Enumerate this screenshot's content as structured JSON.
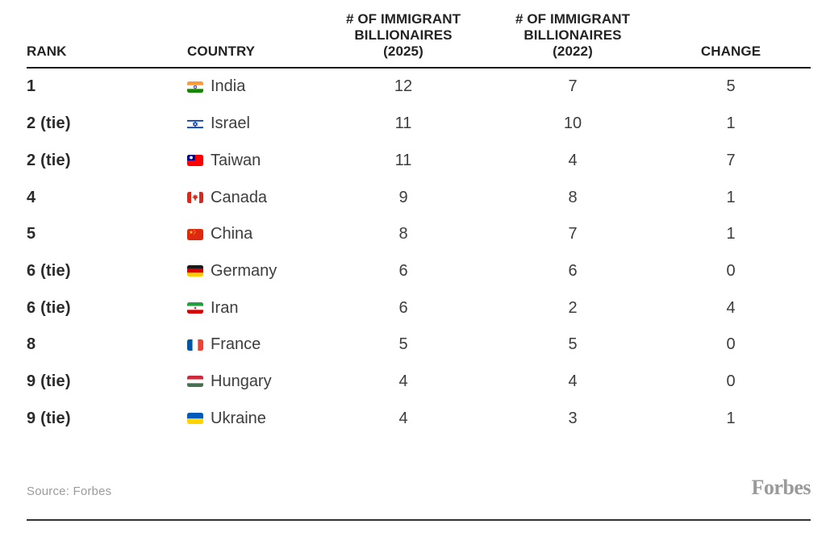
{
  "chart_data": {
    "type": "table",
    "columns": [
      "RANK",
      "COUNTRY",
      "# OF IMMIGRANT BILLIONAIRES (2025)",
      "# OF IMMIGRANT BILLIONAIRES (2022)",
      "CHANGE"
    ],
    "rows": [
      {
        "rank": "1",
        "country": "India",
        "flag": "india",
        "b2025": 12,
        "b2022": 7,
        "change": 5
      },
      {
        "rank": "2 (tie)",
        "country": "Israel",
        "flag": "israel",
        "b2025": 11,
        "b2022": 10,
        "change": 1
      },
      {
        "rank": "2 (tie)",
        "country": "Taiwan",
        "flag": "taiwan",
        "b2025": 11,
        "b2022": 4,
        "change": 7
      },
      {
        "rank": "4",
        "country": "Canada",
        "flag": "canada",
        "b2025": 9,
        "b2022": 8,
        "change": 1
      },
      {
        "rank": "5",
        "country": "China",
        "flag": "china",
        "b2025": 8,
        "b2022": 7,
        "change": 1
      },
      {
        "rank": "6 (tie)",
        "country": "Germany",
        "flag": "germany",
        "b2025": 6,
        "b2022": 6,
        "change": 0
      },
      {
        "rank": "6 (tie)",
        "country": "Iran",
        "flag": "iran",
        "b2025": 6,
        "b2022": 2,
        "change": 4
      },
      {
        "rank": "8",
        "country": "France",
        "flag": "france",
        "b2025": 5,
        "b2022": 5,
        "change": 0
      },
      {
        "rank": "9 (tie)",
        "country": "Hungary",
        "flag": "hungary",
        "b2025": 4,
        "b2022": 4,
        "change": 0
      },
      {
        "rank": "9 (tie)",
        "country": "Ukraine",
        "flag": "ukraine",
        "b2025": 4,
        "b2022": 3,
        "change": 1
      }
    ]
  },
  "footer": {
    "source_label": "Source: Forbes",
    "brand": "Forbes"
  },
  "colors": {
    "text_header": "#232323",
    "text_body": "#3d3d3d",
    "rule_header": "#1b1b1b",
    "rule_bottom": "#333333",
    "muted": "#9b9b9b",
    "background": "#ffffff"
  }
}
